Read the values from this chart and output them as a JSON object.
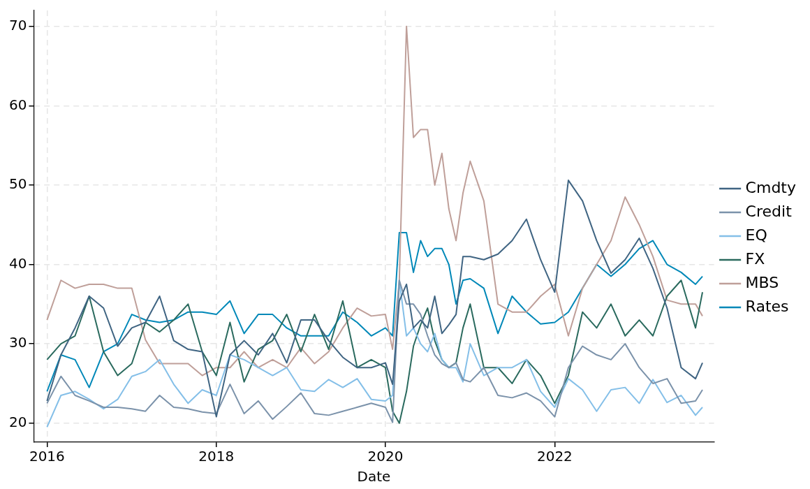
{
  "chart_data": {
    "type": "line",
    "xlabel": "Date",
    "x": [
      "2016-01",
      "2016-03",
      "2016-05",
      "2016-07",
      "2016-09",
      "2016-11",
      "2017-01",
      "2017-03",
      "2017-05",
      "2017-07",
      "2017-09",
      "2017-11",
      "2018-01",
      "2018-03",
      "2018-05",
      "2018-07",
      "2018-09",
      "2018-11",
      "2019-01",
      "2019-03",
      "2019-05",
      "2019-07",
      "2019-09",
      "2019-11",
      "2020-01",
      "2020-02",
      "2020-03",
      "2020-04",
      "2020-05",
      "2020-06",
      "2020-07",
      "2020-08",
      "2020-09",
      "2020-10",
      "2020-11",
      "2020-12",
      "2021-01",
      "2021-03",
      "2021-05",
      "2021-07",
      "2021-09",
      "2021-11",
      "2022-01",
      "2022-03",
      "2022-05",
      "2022-07",
      "2022-09",
      "2022-11",
      "2023-01",
      "2023-03",
      "2023-05",
      "2023-07",
      "2023-09",
      "2023-10"
    ],
    "series": [
      {
        "name": "Cmdty",
        "color": "#3f6482",
        "values": [
          22.8,
          28.6,
          32,
          36,
          34.5,
          29.7,
          32,
          32.7,
          36,
          30.4,
          29.3,
          29,
          20.8,
          28.6,
          30.4,
          28.6,
          31.3,
          27.6,
          33,
          33,
          30.4,
          28.3,
          27,
          27,
          27.6,
          24.9,
          35.4,
          37.5,
          32,
          33,
          32,
          36,
          31.3,
          32.4,
          33.7,
          41,
          41,
          40.6,
          41.3,
          43,
          45.7,
          40.6,
          36.5,
          50.6,
          48,
          43,
          38.9,
          40.6,
          43.3,
          39.5,
          34.5,
          27,
          25.6,
          27.6
        ]
      },
      {
        "name": "Credit",
        "color": "#7b92aa",
        "values": [
          22.5,
          25.9,
          23.5,
          22.8,
          22,
          22,
          21.8,
          21.5,
          23.5,
          22,
          21.8,
          21.4,
          21.2,
          24.9,
          21.2,
          22.8,
          20.5,
          22.1,
          23.8,
          21.2,
          21,
          21.5,
          22,
          22.5,
          22,
          20.1,
          38,
          35,
          35,
          33.7,
          31,
          28.6,
          27.5,
          27,
          27.6,
          25.5,
          25.2,
          27,
          23.5,
          23.2,
          23.8,
          22.8,
          20.8,
          27,
          29.7,
          28.6,
          28,
          30,
          27,
          25,
          25.6,
          22.5,
          22.8,
          24.2
        ]
      },
      {
        "name": "EQ",
        "color": "#84bfe8",
        "values": [
          19.5,
          23.5,
          24,
          23,
          21.8,
          23,
          25.9,
          26.5,
          28,
          24.9,
          22.5,
          24.2,
          23.5,
          28.6,
          28,
          27,
          26,
          27,
          24.2,
          24,
          25.5,
          24.5,
          25.6,
          23,
          22.8,
          23.5,
          38,
          31,
          32,
          30,
          29,
          31.3,
          28,
          27,
          27,
          25.2,
          30,
          26,
          27,
          27,
          28,
          24,
          22,
          25.6,
          24.2,
          21.5,
          24.2,
          24.5,
          22.5,
          25.5,
          22.6,
          23.5,
          21,
          22
        ]
      },
      {
        "name": "FX",
        "color": "#2a6a5e",
        "values": [
          28,
          30,
          31,
          36,
          29,
          26,
          27.5,
          32.7,
          31.5,
          33,
          35,
          29,
          26,
          32.7,
          25.2,
          29.3,
          30.4,
          33.7,
          29,
          33.7,
          29.3,
          35.4,
          27,
          28,
          27,
          21.5,
          20,
          24,
          29.7,
          32.4,
          34.5,
          30.4,
          28,
          27,
          27.6,
          32,
          35,
          27,
          27,
          25,
          28,
          26,
          22.5,
          26,
          34,
          32,
          35,
          31,
          33,
          31,
          36,
          38,
          32,
          36.5
        ]
      },
      {
        "name": "MBS",
        "color": "#bf9f99",
        "values": [
          33,
          38,
          37,
          37.5,
          37.5,
          37,
          37,
          30.5,
          27.5,
          27.5,
          27.5,
          26,
          27,
          27,
          29,
          27,
          28,
          27,
          29.5,
          27.5,
          29,
          32,
          34.5,
          33.5,
          33.7,
          29.3,
          38,
          70,
          56,
          57,
          57,
          50,
          54,
          47,
          43,
          49,
          53,
          48,
          35,
          34,
          34,
          36,
          37.5,
          31,
          37,
          40,
          43,
          48.5,
          45,
          41,
          35.5,
          35,
          35,
          33.5
        ]
      },
      {
        "name": "Rates",
        "color": "#0088b8",
        "values": [
          24,
          28.6,
          28,
          24.5,
          29,
          30,
          33.7,
          33,
          32.7,
          33,
          34,
          34,
          33.7,
          35.4,
          31.3,
          33.7,
          33.7,
          32,
          31,
          31,
          31,
          34,
          32.7,
          31,
          32,
          31,
          44,
          44,
          39,
          43,
          41,
          42,
          42,
          40,
          35,
          38,
          38.2,
          37,
          31.3,
          36,
          34,
          32.5,
          32.7,
          34,
          37,
          40,
          38.5,
          40,
          42,
          43,
          40,
          39,
          37.5,
          38.5
        ]
      }
    ],
    "xlim": [
      "2015-11-05",
      "2023-11-20"
    ],
    "xticks": [
      "2016",
      "2018",
      "2020",
      "2022"
    ],
    "ylim": [
      17.6,
      72
    ],
    "yticks": [
      20,
      30,
      40,
      50,
      60,
      70
    ],
    "grid": true,
    "legend": "right",
    "marker": "none",
    "line_style": "solid"
  }
}
